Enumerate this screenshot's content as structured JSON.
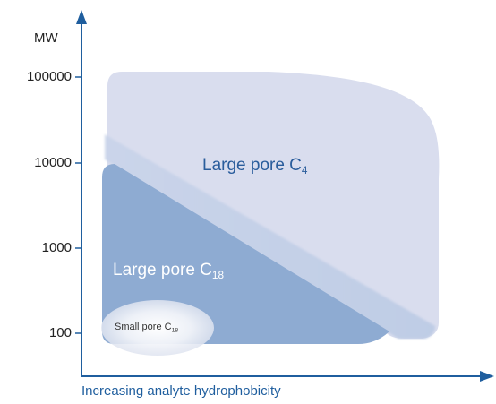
{
  "axes": {
    "y_title": "MW",
    "x_title": "Increasing analyte hydrophobicity",
    "y_ticks": [
      "100000",
      "10000",
      "1000",
      "100"
    ]
  },
  "regions": {
    "large_c4": {
      "text": "Large pore C",
      "sub": "4"
    },
    "large_c18": {
      "text": "Large pore C",
      "sub": "18"
    },
    "small_c18": {
      "text": "Small pore C",
      "sub": "18"
    }
  },
  "colors": {
    "axis": "#1f5e9e",
    "large_c4_fill": "#d9ddee",
    "large_c18_fill": "#8eabd2",
    "small_c18_fill": "#eef0f7",
    "band_fill": "#c5d1e8"
  }
}
